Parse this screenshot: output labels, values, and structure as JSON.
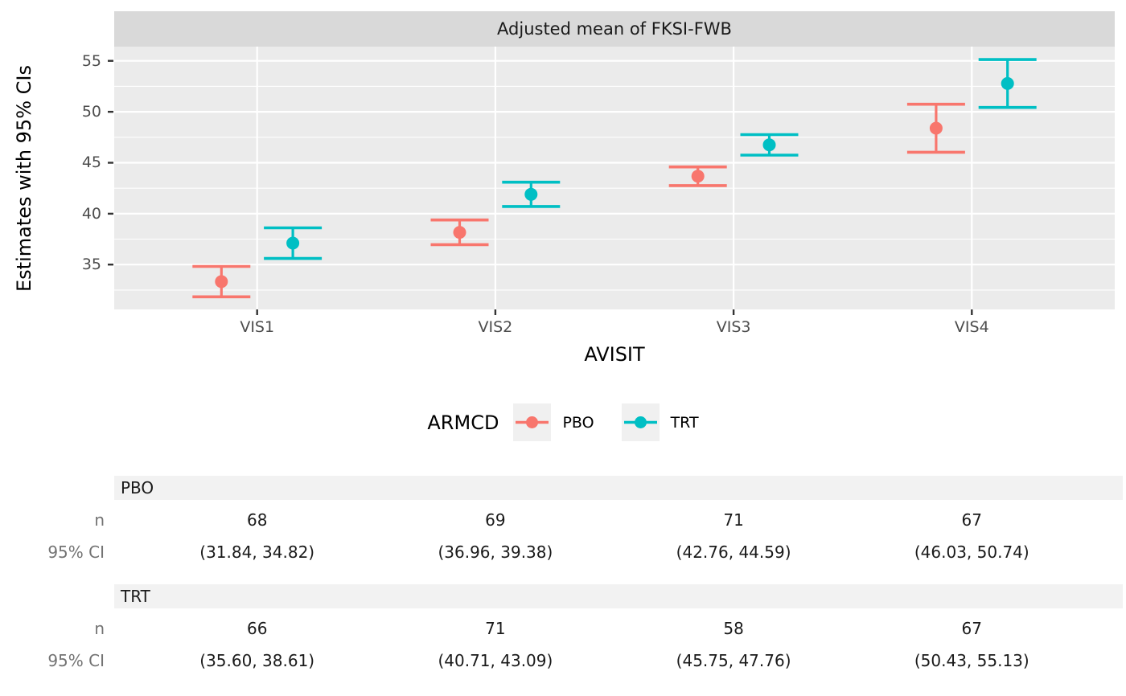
{
  "chart_data": {
    "type": "errorbar",
    "title": "Adjusted mean of FKSI-FWB",
    "xlabel": "AVISIT",
    "ylabel": "Estimates with 95% CIs",
    "categories": [
      "VIS1",
      "VIS2",
      "VIS3",
      "VIS4"
    ],
    "y_ticks": [
      35,
      40,
      45,
      50,
      55
    ],
    "y_minor_ticks": [
      32.5,
      37.5,
      42.5,
      47.5,
      52.5
    ],
    "ylim": [
      30.6,
      56.4
    ],
    "grid": true,
    "legend_title": "ARMCD",
    "legend_position": "bottom",
    "series": [
      {
        "name": "PBO",
        "color": "#F8766D",
        "estimates": [
          33.33,
          38.17,
          43.68,
          48.39
        ],
        "ci_low": [
          31.84,
          36.96,
          42.76,
          46.03
        ],
        "ci_high": [
          34.82,
          39.38,
          44.59,
          50.74
        ],
        "n": [
          68,
          69,
          71,
          67
        ]
      },
      {
        "name": "TRT",
        "color": "#00BFC4",
        "estimates": [
          37.11,
          41.9,
          46.76,
          52.78
        ],
        "ci_low": [
          35.6,
          40.71,
          45.75,
          50.43
        ],
        "ci_high": [
          38.61,
          43.09,
          47.76,
          55.13
        ],
        "n": [
          66,
          71,
          58,
          67
        ]
      }
    ]
  },
  "table": {
    "row_label_n": "n",
    "row_label_ci": "95% CI",
    "sections": [
      {
        "header": "PBO",
        "n": [
          "68",
          "69",
          "71",
          "67"
        ],
        "ci": [
          "(31.84, 34.82)",
          "(36.96, 39.38)",
          "(42.76, 44.59)",
          "(46.03, 50.74)"
        ]
      },
      {
        "header": "TRT",
        "n": [
          "66",
          "71",
          "58",
          "67"
        ],
        "ci": [
          "(35.60, 38.61)",
          "(40.71, 43.09)",
          "(45.75, 47.76)",
          "(50.43, 55.13)"
        ]
      }
    ]
  },
  "colors": {
    "strip_bg": "#D9D9D9",
    "panel_bg": "#EBEBEB",
    "grid": "#FFFFFF",
    "tick_mark": "#333333",
    "tick_text": "#4D4D4D",
    "axis_text": "#000000",
    "legend_key_bg": "#F0F0F0",
    "table_stripe": "#F2F2F2",
    "table_label": "#737373",
    "pbo": "#F8766D",
    "trt": "#00BFC4"
  }
}
